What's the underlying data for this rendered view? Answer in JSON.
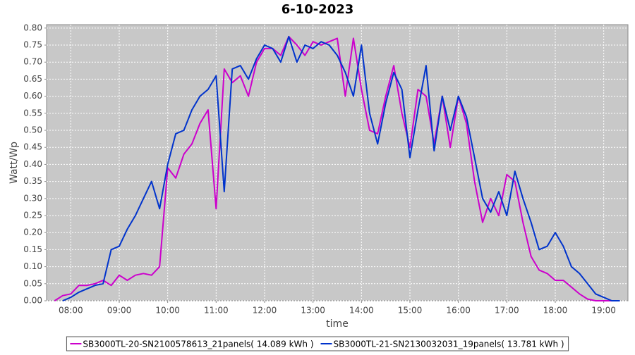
{
  "chart_data": {
    "type": "line",
    "title": "6-10-2023",
    "x_label": "time",
    "y_label": "Watt/Wp",
    "x": [
      "07:40",
      "07:50",
      "08:00",
      "08:10",
      "08:20",
      "08:30",
      "08:40",
      "08:50",
      "09:00",
      "09:10",
      "09:20",
      "09:30",
      "09:40",
      "09:50",
      "10:00",
      "10:10",
      "10:20",
      "10:30",
      "10:40",
      "10:50",
      "11:00",
      "11:10",
      "11:20",
      "11:30",
      "11:40",
      "11:50",
      "12:00",
      "12:10",
      "12:20",
      "12:30",
      "12:40",
      "12:50",
      "13:00",
      "13:10",
      "13:20",
      "13:30",
      "13:40",
      "13:50",
      "14:00",
      "14:10",
      "14:20",
      "14:30",
      "14:40",
      "14:50",
      "15:00",
      "15:10",
      "15:20",
      "15:30",
      "15:40",
      "15:50",
      "16:00",
      "16:10",
      "16:20",
      "16:30",
      "16:40",
      "16:50",
      "17:00",
      "17:10",
      "17:20",
      "17:30",
      "17:40",
      "17:50",
      "18:00",
      "18:10",
      "18:20",
      "18:30",
      "18:40",
      "18:50",
      "19:00",
      "19:10",
      "19:20"
    ],
    "series": [
      {
        "name": "SB3000TL-20-SN2100578613_21panels( 14.089 kWh )",
        "color": "#cc00cc",
        "values": [
          0,
          0.015,
          0.02,
          0.045,
          0.045,
          0.05,
          0.06,
          0.045,
          0.075,
          0.06,
          0.075,
          0.08,
          0.075,
          0.1,
          0.39,
          0.36,
          0.43,
          0.46,
          0.52,
          0.56,
          0.27,
          0.68,
          0.64,
          0.66,
          0.6,
          0.7,
          0.74,
          0.74,
          0.72,
          0.775,
          0.75,
          0.72,
          0.76,
          0.75,
          0.76,
          0.77,
          0.6,
          0.77,
          0.62,
          0.5,
          0.49,
          0.6,
          0.69,
          0.55,
          0.45,
          0.62,
          0.6,
          0.46,
          0.6,
          0.45,
          0.6,
          0.52,
          0.35,
          0.23,
          0.3,
          0.25,
          0.37,
          0.35,
          0.23,
          0.13,
          0.09,
          0.08,
          0.06,
          0.06,
          0.04,
          0.02,
          0.005,
          0,
          0,
          0,
          null
        ]
      },
      {
        "name": "SB3000TL-21-SN2130032031_19panels( 13.781 kWh )",
        "color": "#0033cc",
        "values": [
          null,
          0,
          0.01,
          0.025,
          0.035,
          0.045,
          0.05,
          0.15,
          0.16,
          0.21,
          0.25,
          0.3,
          0.35,
          0.27,
          0.4,
          0.49,
          0.5,
          0.56,
          0.6,
          0.62,
          0.66,
          0.32,
          0.68,
          0.69,
          0.65,
          0.71,
          0.75,
          0.74,
          0.7,
          0.775,
          0.7,
          0.75,
          0.74,
          0.76,
          0.75,
          0.72,
          0.67,
          0.6,
          0.75,
          0.55,
          0.46,
          0.58,
          0.67,
          0.62,
          0.42,
          0.56,
          0.69,
          0.44,
          0.6,
          0.5,
          0.6,
          0.54,
          0.42,
          0.3,
          0.26,
          0.32,
          0.25,
          0.38,
          0.3,
          0.23,
          0.15,
          0.16,
          0.2,
          0.16,
          0.1,
          0.08,
          0.05,
          0.02,
          0.01,
          0,
          0
        ]
      }
    ],
    "xlim": [
      "07:30",
      "19:30"
    ],
    "xticks": [
      "08:00",
      "09:00",
      "10:00",
      "11:00",
      "12:00",
      "13:00",
      "14:00",
      "15:00",
      "16:00",
      "17:00",
      "18:00",
      "19:00"
    ],
    "ylim": [
      0,
      0.81
    ],
    "yticks": [
      {
        "value": 0,
        "label": "0.00"
      },
      {
        "value": 0.05,
        "label": "0.05"
      },
      {
        "value": 0.1,
        "label": "0.10"
      },
      {
        "value": 0.15,
        "label": "0.15"
      },
      {
        "value": 0.2,
        "label": "0.20"
      },
      {
        "value": 0.25,
        "label": "0.25"
      },
      {
        "value": 0.3,
        "label": "0.30"
      },
      {
        "value": 0.35,
        "label": "0.35"
      },
      {
        "value": 0.4,
        "label": "0.40"
      },
      {
        "value": 0.45,
        "label": "0.45"
      },
      {
        "value": 0.5,
        "label": "0.50"
      },
      {
        "value": 0.55,
        "label": "0.55"
      },
      {
        "value": 0.6,
        "label": "0.60"
      },
      {
        "value": 0.65,
        "label": "0.65"
      },
      {
        "value": 0.7,
        "label": "0.70"
      },
      {
        "value": 0.75,
        "label": "0.75"
      },
      {
        "value": 0.8,
        "label": "0.80"
      }
    ],
    "grid": true,
    "legend": "bottom"
  }
}
